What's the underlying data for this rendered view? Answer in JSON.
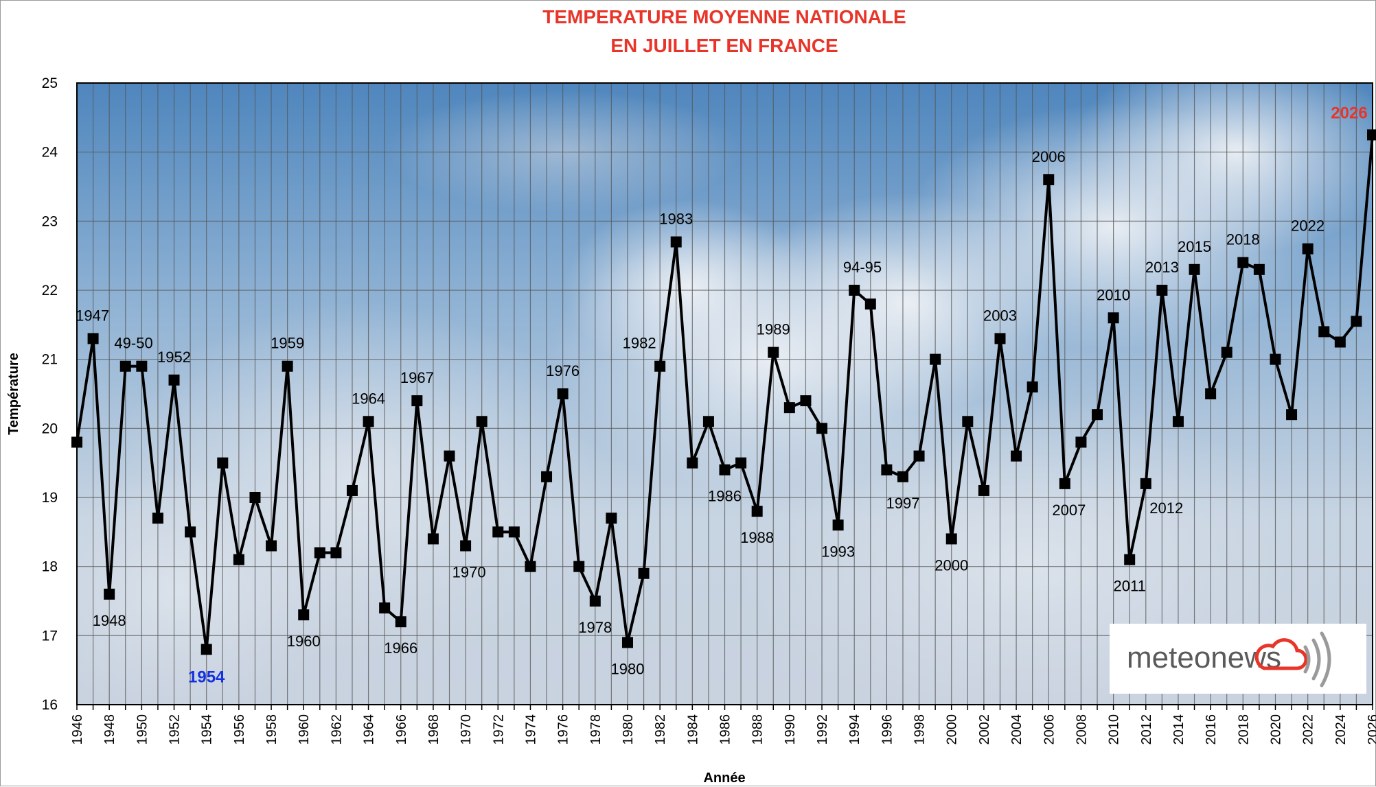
{
  "logo": {
    "text": "meteonews"
  },
  "colors": {
    "title": "#e8352a",
    "line": "#000000",
    "marker": "#000000",
    "min_highlight": "#1530e0",
    "max_highlight": "#e8352a",
    "logo_cloud": "#e8352a",
    "sky_top": "#5b8fc0"
  },
  "chart_data": {
    "type": "line",
    "title": [
      "TEMPERATURE MOYENNE NATIONALE",
      "EN JUILLET EN FRANCE"
    ],
    "xlabel": "Année",
    "ylabel": "Température",
    "xlim": [
      1946,
      2026
    ],
    "ylim": [
      16,
      25
    ],
    "yticks": [
      16,
      17,
      18,
      19,
      20,
      21,
      22,
      23,
      24,
      25
    ],
    "xticks": [
      1946,
      1948,
      1950,
      1952,
      1954,
      1956,
      1958,
      1960,
      1962,
      1964,
      1966,
      1968,
      1970,
      1972,
      1974,
      1976,
      1978,
      1980,
      1982,
      1984,
      1986,
      1988,
      1990,
      1992,
      1994,
      1996,
      1998,
      2000,
      2002,
      2004,
      2006,
      2008,
      2010,
      2012,
      2014,
      2016,
      2018,
      2020,
      2022,
      2024,
      2026
    ],
    "grid": "vertical lines every year, horizontal lines every degree",
    "marker": "square",
    "series": [
      {
        "x": [
          1946,
          1947,
          1948,
          1949,
          1950,
          1951,
          1952,
          1953,
          1954,
          1955,
          1956,
          1957,
          1958,
          1959,
          1960,
          1961,
          1962,
          1963,
          1964,
          1965,
          1966,
          1967,
          1968,
          1969,
          1970,
          1971,
          1972,
          1973,
          1974,
          1975,
          1976,
          1977,
          1978,
          1979,
          1980,
          1981,
          1982,
          1983,
          1984,
          1985,
          1986,
          1987,
          1988,
          1989,
          1990,
          1991,
          1992,
          1993,
          1994,
          1995,
          1996,
          1997,
          1998,
          1999,
          2000,
          2001,
          2002,
          2003,
          2004,
          2005,
          2006,
          2007,
          2008,
          2009,
          2010,
          2011,
          2012,
          2013,
          2014,
          2015,
          2016,
          2017,
          2018,
          2019,
          2020,
          2021,
          2022,
          2023,
          2024,
          2025,
          2026
        ],
        "values": [
          19.8,
          21.3,
          17.6,
          20.9,
          20.9,
          18.7,
          20.7,
          18.5,
          16.8,
          19.5,
          18.1,
          19.0,
          18.3,
          20.9,
          17.3,
          18.2,
          18.2,
          19.1,
          20.1,
          17.4,
          17.2,
          20.4,
          18.4,
          19.6,
          18.3,
          20.1,
          18.5,
          18.5,
          18.0,
          19.3,
          20.5,
          18.0,
          17.5,
          18.7,
          16.9,
          17.9,
          20.9,
          22.7,
          19.5,
          20.1,
          19.4,
          19.5,
          18.8,
          21.1,
          20.3,
          20.4,
          20.0,
          18.6,
          22.0,
          21.8,
          19.4,
          19.3,
          19.6,
          21.0,
          18.4,
          20.1,
          19.1,
          21.3,
          19.6,
          20.6,
          23.6,
          19.2,
          19.8,
          20.2,
          21.6,
          18.1,
          19.2,
          22.0,
          20.1,
          22.3,
          20.5,
          21.1,
          22.4,
          22.3,
          21.0,
          20.2,
          22.6,
          21.4,
          21.25,
          21.55,
          24.25
        ]
      }
    ],
    "annotations": [
      {
        "text": "1947",
        "year": 1947,
        "pos": "above",
        "style": "normal"
      },
      {
        "text": "1948",
        "year": 1948,
        "pos": "below",
        "style": "normal"
      },
      {
        "text": "49-50",
        "year": 1949.5,
        "pos": "above",
        "style": "normal"
      },
      {
        "text": "1952",
        "year": 1952,
        "pos": "above",
        "style": "normal"
      },
      {
        "text": "1954",
        "year": 1954,
        "pos": "below",
        "style": "min"
      },
      {
        "text": "1959",
        "year": 1959,
        "pos": "above",
        "style": "normal"
      },
      {
        "text": "1960",
        "year": 1960,
        "pos": "below",
        "style": "normal"
      },
      {
        "text": "1964",
        "year": 1964,
        "pos": "above",
        "style": "normal"
      },
      {
        "text": "1966",
        "year": 1966,
        "pos": "below",
        "style": "normal"
      },
      {
        "text": "1967",
        "year": 1967,
        "pos": "above",
        "style": "normal"
      },
      {
        "text": "1970",
        "year": 1970,
        "pos": "below",
        "style": "normal"
      },
      {
        "text": "1976",
        "year": 1976,
        "pos": "above",
        "style": "normal"
      },
      {
        "text": "1978",
        "year": 1978,
        "pos": "below",
        "style": "normal"
      },
      {
        "text": "1980",
        "year": 1980,
        "pos": "below",
        "style": "normal"
      },
      {
        "text": "1982",
        "year": 1982,
        "pos": "above",
        "style": "normal"
      },
      {
        "text": "1983",
        "year": 1983,
        "pos": "above",
        "style": "normal"
      },
      {
        "text": "1986",
        "year": 1986,
        "pos": "below",
        "style": "normal"
      },
      {
        "text": "1988",
        "year": 1988,
        "pos": "below",
        "style": "normal"
      },
      {
        "text": "1989",
        "year": 1989,
        "pos": "above",
        "style": "normal"
      },
      {
        "text": "1993",
        "year": 1993,
        "pos": "below",
        "style": "normal"
      },
      {
        "text": "94-95",
        "year": 1994.5,
        "pos": "above",
        "style": "normal"
      },
      {
        "text": "1997",
        "year": 1997,
        "pos": "below",
        "style": "normal"
      },
      {
        "text": "2000",
        "year": 2000,
        "pos": "below",
        "style": "normal"
      },
      {
        "text": "2003",
        "year": 2003,
        "pos": "above",
        "style": "normal"
      },
      {
        "text": "2006",
        "year": 2006,
        "pos": "above",
        "style": "normal"
      },
      {
        "text": "2007",
        "year": 2007,
        "pos": "below",
        "style": "normal"
      },
      {
        "text": "2010",
        "year": 2010,
        "pos": "above",
        "style": "normal"
      },
      {
        "text": "2011",
        "year": 2011,
        "pos": "below",
        "style": "normal"
      },
      {
        "text": "2012",
        "year": 2012,
        "pos": "below",
        "style": "normal"
      },
      {
        "text": "2013",
        "year": 2013,
        "pos": "above",
        "style": "normal"
      },
      {
        "text": "2015",
        "year": 2015,
        "pos": "above",
        "style": "normal"
      },
      {
        "text": "2018",
        "year": 2018,
        "pos": "above",
        "style": "normal"
      },
      {
        "text": "2022",
        "year": 2022,
        "pos": "above",
        "style": "normal"
      },
      {
        "text": "2026",
        "year": 2026,
        "pos": "above",
        "style": "max"
      }
    ]
  }
}
